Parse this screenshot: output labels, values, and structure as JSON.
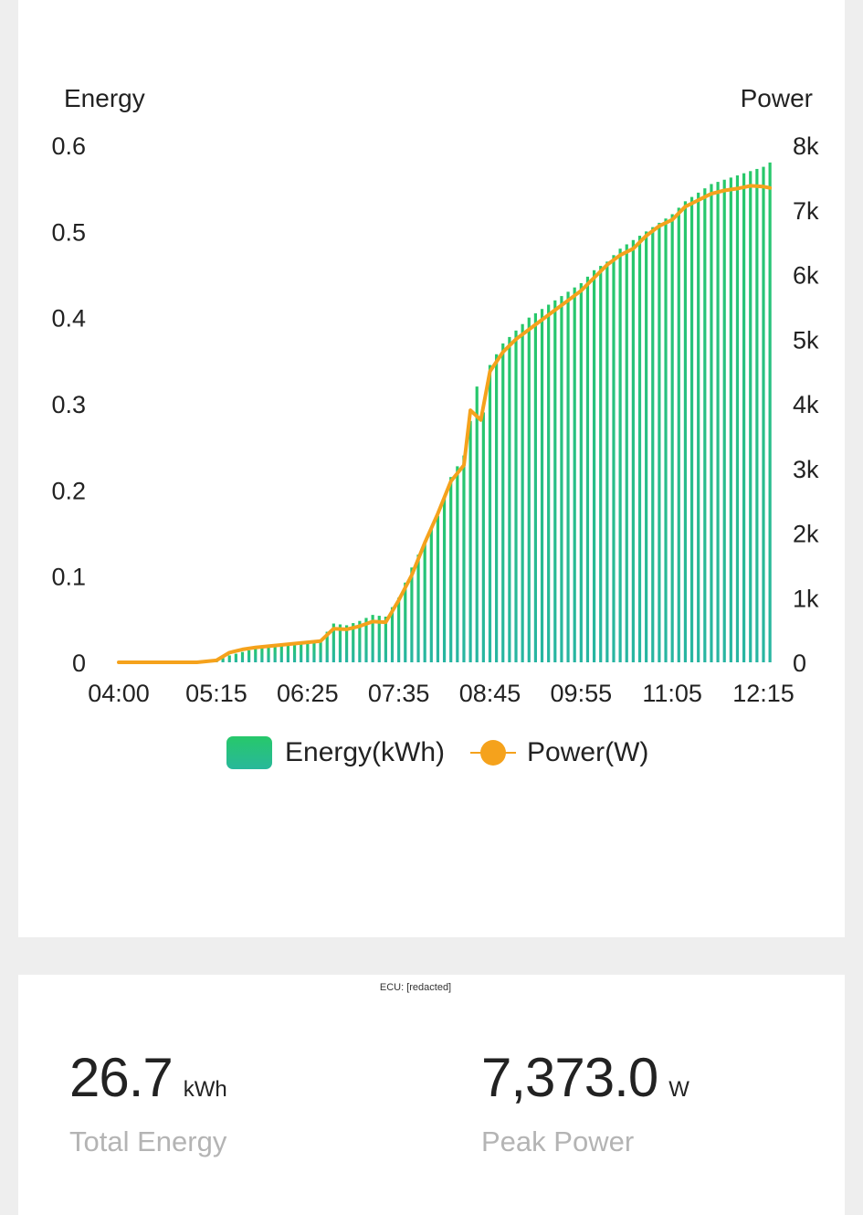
{
  "chart_data": {
    "type": "bar",
    "y_left_label": "Energy",
    "y_right_label": "Power",
    "y_left_ticks": [
      "0",
      "0.1",
      "0.2",
      "0.3",
      "0.4",
      "0.5",
      "0.6"
    ],
    "y_right_ticks": [
      "0",
      "1k",
      "2k",
      "3k",
      "4k",
      "5k",
      "6k",
      "7k",
      "8k"
    ],
    "ylim_left": [
      0,
      0.6
    ],
    "ylim_right": [
      0,
      8000
    ],
    "x_ticks": [
      "04:00",
      "05:15",
      "06:25",
      "07:35",
      "08:45",
      "09:55",
      "11:05",
      "12:15"
    ],
    "x_range": [
      "04:00",
      "12:15"
    ],
    "legend_position": "bottom",
    "colors": {
      "energy_top": "#27c86a",
      "energy_bottom": "#28b5a2",
      "power": "#f5a21c"
    },
    "series": [
      {
        "name": "Energy(kWh)",
        "kind": "bar",
        "points": [
          [
            "05:15",
            0.002
          ],
          [
            "05:25",
            0.008
          ],
          [
            "05:35",
            0.012
          ],
          [
            "05:45",
            0.016
          ],
          [
            "05:55",
            0.018
          ],
          [
            "06:05",
            0.02
          ],
          [
            "06:15",
            0.022
          ],
          [
            "06:25",
            0.024
          ],
          [
            "06:35",
            0.026
          ],
          [
            "06:45",
            0.045
          ],
          [
            "06:55",
            0.043
          ],
          [
            "07:05",
            0.048
          ],
          [
            "07:15",
            0.055
          ],
          [
            "07:25",
            0.053
          ],
          [
            "07:35",
            0.075
          ],
          [
            "07:45",
            0.11
          ],
          [
            "07:55",
            0.14
          ],
          [
            "08:05",
            0.17
          ],
          [
            "08:15",
            0.215
          ],
          [
            "08:25",
            0.24
          ],
          [
            "08:35",
            0.32
          ],
          [
            "08:40",
            0.29
          ],
          [
            "08:45",
            0.345
          ],
          [
            "08:55",
            0.37
          ],
          [
            "09:05",
            0.385
          ],
          [
            "09:15",
            0.4
          ],
          [
            "09:25",
            0.41
          ],
          [
            "09:35",
            0.42
          ],
          [
            "09:45",
            0.43
          ],
          [
            "09:55",
            0.44
          ],
          [
            "10:05",
            0.455
          ],
          [
            "10:15",
            0.465
          ],
          [
            "10:25",
            0.48
          ],
          [
            "10:35",
            0.49
          ],
          [
            "10:45",
            0.5
          ],
          [
            "10:55",
            0.51
          ],
          [
            "11:05",
            0.52
          ],
          [
            "11:15",
            0.535
          ],
          [
            "11:25",
            0.545
          ],
          [
            "11:35",
            0.555
          ],
          [
            "11:45",
            0.56
          ],
          [
            "11:55",
            0.565
          ],
          [
            "12:05",
            0.57
          ],
          [
            "12:15",
            0.575
          ],
          [
            "12:20",
            0.58
          ]
        ]
      },
      {
        "name": "Power(W)",
        "kind": "line",
        "points": [
          [
            "04:00",
            0
          ],
          [
            "05:00",
            0
          ],
          [
            "05:15",
            30
          ],
          [
            "05:25",
            150
          ],
          [
            "05:35",
            200
          ],
          [
            "05:45",
            230
          ],
          [
            "06:00",
            260
          ],
          [
            "06:15",
            290
          ],
          [
            "06:25",
            310
          ],
          [
            "06:35",
            330
          ],
          [
            "06:45",
            520
          ],
          [
            "06:55",
            510
          ],
          [
            "07:05",
            560
          ],
          [
            "07:15",
            630
          ],
          [
            "07:25",
            620
          ],
          [
            "07:35",
            960
          ],
          [
            "07:45",
            1350
          ],
          [
            "07:55",
            1850
          ],
          [
            "08:05",
            2300
          ],
          [
            "08:15",
            2800
          ],
          [
            "08:25",
            3050
          ],
          [
            "08:30",
            3900
          ],
          [
            "08:38",
            3750
          ],
          [
            "08:45",
            4500
          ],
          [
            "08:55",
            4800
          ],
          [
            "09:05",
            5000
          ],
          [
            "09:15",
            5150
          ],
          [
            "09:25",
            5300
          ],
          [
            "09:35",
            5450
          ],
          [
            "09:45",
            5600
          ],
          [
            "09:55",
            5750
          ],
          [
            "10:05",
            5950
          ],
          [
            "10:15",
            6150
          ],
          [
            "10:25",
            6300
          ],
          [
            "10:35",
            6400
          ],
          [
            "10:45",
            6600
          ],
          [
            "10:55",
            6750
          ],
          [
            "11:05",
            6850
          ],
          [
            "11:15",
            7050
          ],
          [
            "11:25",
            7150
          ],
          [
            "11:35",
            7250
          ],
          [
            "11:45",
            7300
          ],
          [
            "11:55",
            7330
          ],
          [
            "12:05",
            7373
          ],
          [
            "12:15",
            7360
          ],
          [
            "12:20",
            7340
          ]
        ]
      }
    ]
  },
  "summary": {
    "ecu_label": "ECU:   [redacted]",
    "total_energy_value": "26.7",
    "total_energy_unit": "kWh",
    "total_energy_label": "Total Energy",
    "peak_power_value": "7,373.0",
    "peak_power_unit": "W",
    "peak_power_label": "Peak Power"
  }
}
